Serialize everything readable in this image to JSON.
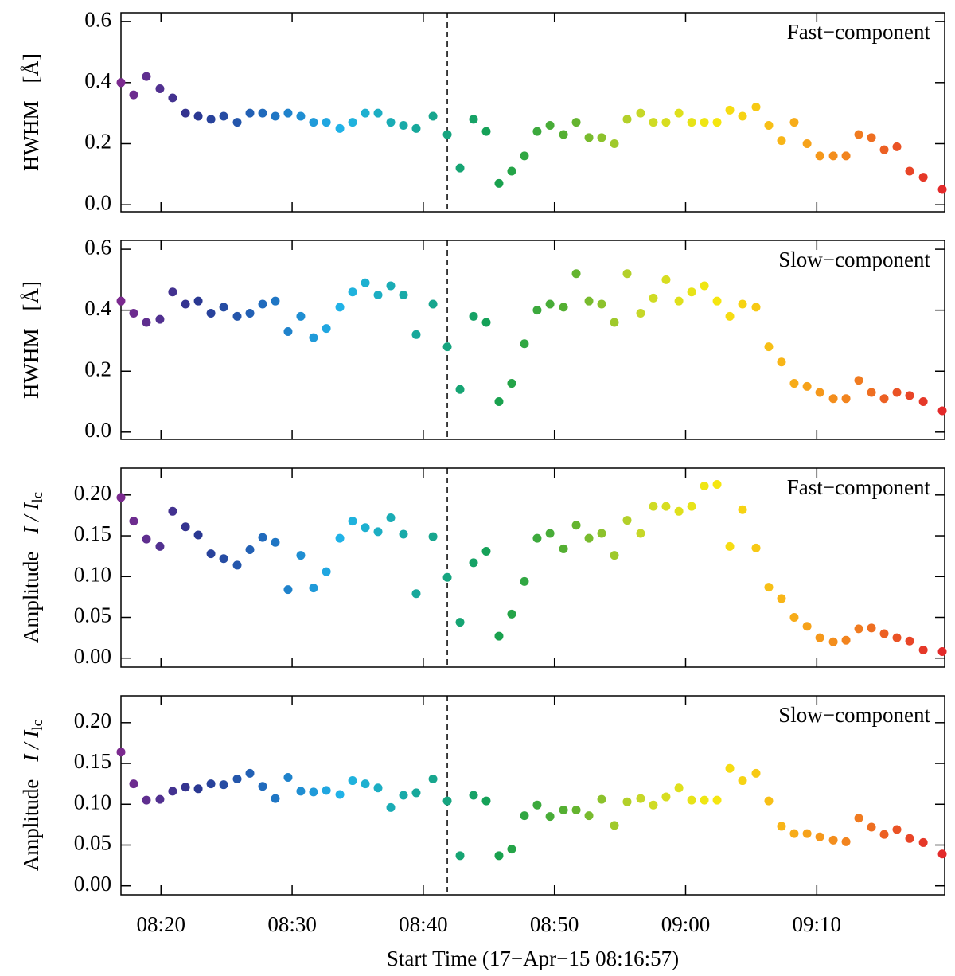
{
  "chart_data": [
    {
      "type": "scatter",
      "ylabel": "HWHM",
      "ylabel_unit": "[Å]",
      "annotation": "Fast−component",
      "x": [
        16.95,
        17.92,
        18.89,
        19.92,
        20.89,
        21.87,
        22.84,
        23.81,
        24.78,
        25.81,
        26.78,
        27.75,
        28.72,
        29.69,
        30.66,
        31.63,
        32.61,
        33.64,
        34.61,
        35.58,
        36.55,
        37.52,
        38.49,
        39.46,
        40.74,
        41.83,
        42.8,
        43.83,
        44.8,
        45.77,
        46.74,
        47.71,
        48.68,
        49.66,
        50.69,
        51.66,
        52.63,
        53.6,
        54.57,
        55.54,
        56.57,
        57.54,
        58.51,
        59.49,
        60.46,
        61.43,
        62.4,
        63.37,
        64.34,
        65.37,
        66.34,
        67.31,
        68.28,
        69.26,
        70.23,
        71.26,
        72.23,
        73.2,
        74.17,
        75.14,
        76.11,
        77.08,
        78.12,
        79.57
      ],
      "values": [
        0.4,
        0.36,
        0.42,
        0.38,
        0.35,
        0.3,
        0.29,
        0.28,
        0.29,
        0.27,
        0.3,
        0.3,
        0.29,
        0.3,
        0.29,
        0.27,
        0.27,
        0.25,
        0.27,
        0.3,
        0.3,
        0.27,
        0.26,
        0.25,
        0.29,
        0.23,
        0.12,
        0.28,
        0.24,
        0.07,
        0.11,
        0.16,
        0.24,
        0.26,
        0.23,
        0.27,
        0.22,
        0.22,
        0.2,
        0.28,
        0.3,
        0.27,
        0.27,
        0.3,
        0.27,
        0.27,
        0.27,
        0.31,
        0.29,
        0.32,
        0.26,
        0.21,
        0.27,
        0.2,
        0.16,
        0.16,
        0.16,
        0.23,
        0.22,
        0.18,
        0.19,
        0.11,
        0.09,
        0.05
      ],
      "colormap": [
        "#7b2a8f",
        "#2b3590",
        "#1f6fc0",
        "#20b4e8",
        "#17a89c",
        "#15a050",
        "#58b030",
        "#c8d828",
        "#f5e810",
        "#f8b018",
        "#f07820",
        "#e32a2a"
      ],
      "vline": 41.83,
      "xlim": [
        16.95,
        79.75
      ],
      "ylim": [
        -0.023,
        0.629
      ],
      "yticks": [
        {
          "value": 0,
          "label": "0.0"
        },
        0.2,
        0.4,
        0.6
      ]
    },
    {
      "type": "scatter",
      "ylabel": "HWHM",
      "ylabel_unit": "[Å]",
      "annotation": "Slow−component",
      "x": [
        16.95,
        17.92,
        18.89,
        19.92,
        20.89,
        21.87,
        22.84,
        23.81,
        24.78,
        25.81,
        26.78,
        27.75,
        28.72,
        29.69,
        30.66,
        31.63,
        32.61,
        33.64,
        34.61,
        35.58,
        36.55,
        37.52,
        38.49,
        39.46,
        40.74,
        41.83,
        42.8,
        43.83,
        44.8,
        45.77,
        46.74,
        47.71,
        48.68,
        49.66,
        50.69,
        51.66,
        52.63,
        53.6,
        54.57,
        55.54,
        56.57,
        57.54,
        58.51,
        59.49,
        60.46,
        61.43,
        62.4,
        63.37,
        64.34,
        65.37,
        66.34,
        67.31,
        68.28,
        69.26,
        70.23,
        71.26,
        72.23,
        73.2,
        74.17,
        75.14,
        76.11,
        77.08,
        78.12,
        79.57
      ],
      "values": [
        0.43,
        0.39,
        0.36,
        0.37,
        0.46,
        0.42,
        0.43,
        0.39,
        0.41,
        0.38,
        0.39,
        0.42,
        0.43,
        0.33,
        0.38,
        0.31,
        0.34,
        0.41,
        0.46,
        0.49,
        0.45,
        0.48,
        0.45,
        0.32,
        0.42,
        0.28,
        0.14,
        0.38,
        0.36,
        0.1,
        0.16,
        0.29,
        0.4,
        0.42,
        0.41,
        0.52,
        0.43,
        0.42,
        0.36,
        0.52,
        0.39,
        0.44,
        0.5,
        0.43,
        0.46,
        0.48,
        0.43,
        0.38,
        0.42,
        0.41,
        0.28,
        0.23,
        0.16,
        0.15,
        0.13,
        0.11,
        0.11,
        0.17,
        0.13,
        0.11,
        0.13,
        0.12,
        0.1,
        0.07
      ],
      "colormap": [
        "#7b2a8f",
        "#2b3590",
        "#1f6fc0",
        "#20b4e8",
        "#17a89c",
        "#15a050",
        "#58b030",
        "#c8d828",
        "#f5e810",
        "#f8b018",
        "#f07820",
        "#e32a2a"
      ],
      "vline": 41.83,
      "xlim": [
        16.95,
        79.75
      ],
      "ylim": [
        -0.024,
        0.629
      ],
      "yticks": [
        {
          "value": 0,
          "label": "0.0"
        },
        0.2,
        0.4,
        0.6
      ]
    },
    {
      "type": "scatter",
      "ylabel": "Amplitude",
      "ylabel_unit": "I / I",
      "ylabel_sub": "lc",
      "annotation": "Fast−component",
      "x": [
        16.95,
        17.92,
        18.89,
        19.92,
        20.89,
        21.87,
        22.84,
        23.81,
        24.78,
        25.81,
        26.78,
        27.75,
        28.72,
        29.69,
        30.66,
        31.63,
        32.61,
        33.64,
        34.61,
        35.58,
        36.55,
        37.52,
        38.49,
        39.46,
        40.74,
        41.83,
        42.8,
        43.83,
        44.8,
        45.77,
        46.74,
        47.71,
        48.68,
        49.66,
        50.69,
        51.66,
        52.63,
        53.6,
        54.57,
        55.54,
        56.57,
        57.54,
        58.51,
        59.49,
        60.46,
        61.43,
        62.4,
        63.37,
        64.34,
        65.37,
        66.34,
        67.31,
        68.28,
        69.26,
        70.23,
        71.26,
        72.23,
        73.2,
        74.17,
        75.14,
        76.11,
        77.08,
        78.12,
        79.57
      ],
      "values": [
        0.197,
        0.168,
        0.146,
        0.137,
        0.18,
        0.161,
        0.151,
        0.128,
        0.122,
        0.114,
        0.133,
        0.148,
        0.142,
        0.084,
        0.126,
        0.086,
        0.106,
        0.147,
        0.168,
        0.16,
        0.155,
        0.172,
        0.152,
        0.079,
        0.149,
        0.099,
        0.044,
        0.117,
        0.131,
        0.027,
        0.054,
        0.094,
        0.147,
        0.153,
        0.134,
        0.163,
        0.147,
        0.153,
        0.126,
        0.169,
        0.153,
        0.186,
        0.186,
        0.18,
        0.186,
        0.211,
        0.213,
        0.137,
        0.182,
        0.135,
        0.087,
        0.073,
        0.05,
        0.039,
        0.025,
        0.02,
        0.022,
        0.036,
        0.037,
        0.03,
        0.025,
        0.021,
        0.01,
        0.008
      ],
      "colormap": [
        "#7b2a8f",
        "#2b3590",
        "#1f6fc0",
        "#20b4e8",
        "#17a89c",
        "#15a050",
        "#58b030",
        "#c8d828",
        "#f5e810",
        "#f8b018",
        "#f07820",
        "#e32a2a"
      ],
      "vline": 41.83,
      "xlim": [
        16.95,
        79.75
      ],
      "ylim": [
        -0.011,
        0.233
      ],
      "yticks": [
        {
          "value": 0,
          "label": "0.00"
        },
        0.05,
        {
          "value": 0.1,
          "label": "0.10"
        },
        0.15,
        {
          "value": 0.2,
          "label": "0.20"
        }
      ]
    },
    {
      "type": "scatter",
      "ylabel": "Amplitude",
      "ylabel_unit": "I / I",
      "ylabel_sub": "lc",
      "annotation": "Slow−component",
      "x": [
        16.95,
        17.92,
        18.89,
        19.92,
        20.89,
        21.87,
        22.84,
        23.81,
        24.78,
        25.81,
        26.78,
        27.75,
        28.72,
        29.69,
        30.66,
        31.63,
        32.61,
        33.64,
        34.61,
        35.58,
        36.55,
        37.52,
        38.49,
        39.46,
        40.74,
        41.83,
        42.8,
        43.83,
        44.8,
        45.77,
        46.74,
        47.71,
        48.68,
        49.66,
        50.69,
        51.66,
        52.63,
        53.6,
        54.57,
        55.54,
        56.57,
        57.54,
        58.51,
        59.49,
        60.46,
        61.43,
        62.4,
        63.37,
        64.34,
        65.37,
        66.34,
        67.31,
        68.28,
        69.26,
        70.23,
        71.26,
        72.23,
        73.2,
        74.17,
        75.14,
        76.11,
        77.08,
        78.12,
        79.57
      ],
      "values": [
        0.164,
        0.125,
        0.105,
        0.106,
        0.116,
        0.121,
        0.119,
        0.125,
        0.124,
        0.131,
        0.138,
        0.122,
        0.107,
        0.133,
        0.116,
        0.115,
        0.117,
        0.112,
        0.129,
        0.125,
        0.12,
        0.096,
        0.111,
        0.114,
        0.131,
        0.104,
        0.037,
        0.111,
        0.104,
        0.037,
        0.045,
        0.086,
        0.099,
        0.085,
        0.093,
        0.093,
        0.086,
        0.106,
        0.074,
        0.103,
        0.107,
        0.099,
        0.109,
        0.12,
        0.105,
        0.105,
        0.105,
        0.144,
        0.129,
        0.138,
        0.104,
        0.073,
        0.064,
        0.064,
        0.06,
        0.056,
        0.054,
        0.083,
        0.072,
        0.063,
        0.069,
        0.058,
        0.053,
        0.039
      ],
      "colormap": [
        "#7b2a8f",
        "#2b3590",
        "#1f6fc0",
        "#20b4e8",
        "#17a89c",
        "#15a050",
        "#58b030",
        "#c8d828",
        "#f5e810",
        "#f8b018",
        "#f07820",
        "#e32a2a"
      ],
      "vline": 41.83,
      "xlim": [
        16.95,
        79.75
      ],
      "ylim": [
        -0.011,
        0.233
      ],
      "yticks": [
        {
          "value": 0,
          "label": "0.00"
        },
        0.05,
        {
          "value": 0.1,
          "label": "0.10"
        },
        0.15,
        {
          "value": 0.2,
          "label": "0.20"
        }
      ],
      "xlabel": "Start Time (17−Apr−15 08:16:57)",
      "xticks": [
        {
          "value": 20,
          "label": "08:20"
        },
        {
          "value": 30,
          "label": "08:30"
        },
        {
          "value": 40,
          "label": "08:40"
        },
        {
          "value": 50,
          "label": "08:50"
        },
        {
          "value": 60,
          "label": "09:00"
        },
        {
          "value": 70,
          "label": "09:10"
        }
      ]
    }
  ]
}
